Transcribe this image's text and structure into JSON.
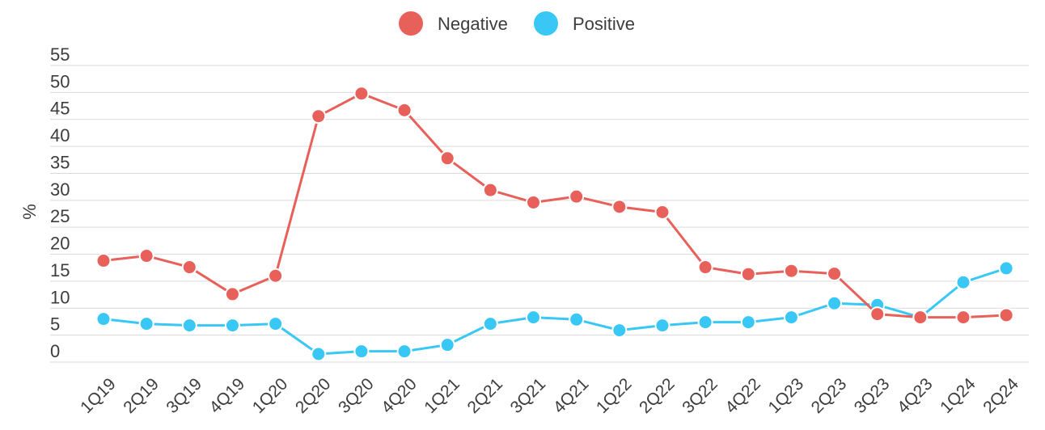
{
  "chart_data": {
    "type": "line",
    "categories": [
      "1Q19",
      "2Q19",
      "3Q19",
      "4Q19",
      "1Q20",
      "2Q20",
      "3Q20",
      "4Q20",
      "1Q21",
      "2Q21",
      "3Q21",
      "4Q21",
      "1Q22",
      "2Q22",
      "3Q22",
      "4Q22",
      "1Q23",
      "2Q23",
      "3Q23",
      "4Q23",
      "1Q24",
      "2Q24"
    ],
    "series": [
      {
        "name": "Negative",
        "color": "#e8605a",
        "values": [
          18.8,
          19.7,
          17.6,
          12.6,
          16.0,
          45.6,
          49.8,
          46.7,
          37.8,
          31.9,
          29.6,
          30.7,
          28.8,
          27.8,
          17.6,
          16.3,
          16.9,
          16.4,
          8.9,
          8.3,
          8.3,
          8.7
        ]
      },
      {
        "name": "Positive",
        "color": "#39c8f5",
        "values": [
          8.0,
          7.1,
          6.8,
          6.8,
          7.1,
          1.5,
          2.0,
          2.0,
          3.2,
          7.1,
          8.3,
          7.9,
          5.9,
          6.8,
          7.4,
          7.4,
          8.3,
          10.9,
          10.6,
          8.3,
          14.8,
          17.4
        ]
      }
    ],
    "ylabel": "%",
    "xlabel": "",
    "ylim": [
      0,
      55
    ],
    "yticks": [
      0,
      5,
      10,
      15,
      20,
      25,
      30,
      35,
      40,
      45,
      50,
      55
    ],
    "grid": true,
    "legend_position": "top-center"
  }
}
